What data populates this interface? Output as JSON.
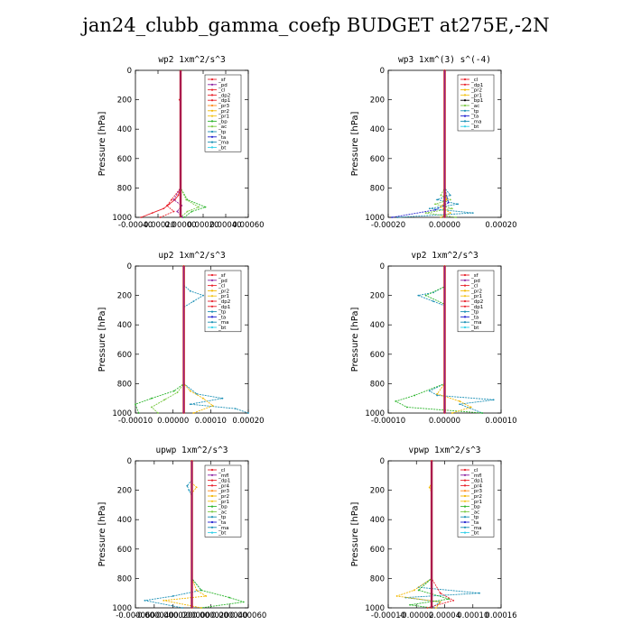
{
  "title": "jan24_clubb_gamma_coefp  BUDGET at275E,-2N",
  "colors": {
    "sf": "#e8202a",
    "pd": "#8a1fa0",
    "cl": "#e8202a",
    "dp2": "#e8202a",
    "dp1": "#e8202a",
    "pr3": "#ff8c1a",
    "pr2": "#f2b700",
    "pr1": "#f2c41a",
    "pr4": "#e8202a",
    "bp": "#2cb52c",
    "ac": "#7ac943",
    "tp": "#1a8fb5",
    "ta": "#1e1ed0",
    "ma": "#1a8fb5",
    "bt": "#30d0e8",
    "mfl": "#8a1fa0",
    "line": "#e8202a"
  },
  "chart_data": [
    {
      "type": "line",
      "title": "wp2   1xm^2/s^3",
      "ylabel": "Pressure [hPa]",
      "ylim": [
        1000,
        0
      ],
      "xlim": [
        -0.0004,
        0.0006
      ],
      "xticks": [
        "-0.00040",
        "-0.00020",
        "0.00000",
        "0.00020",
        "0.00040",
        "0.00060"
      ],
      "yticks": [
        "0",
        "200",
        "400",
        "600",
        "800",
        "1000"
      ],
      "legend": [
        "_sf",
        "_pd",
        "_cl",
        "_dp2",
        "_dp1",
        "_pr3",
        "_pr2",
        "_pr1",
        "_bp",
        "_ac",
        "_tp",
        "_ta",
        "_ma",
        "_bt"
      ],
      "legend_position": "top-right",
      "series": [
        {
          "key": "sf",
          "p": [
            0,
            200,
            800,
            850,
            880,
            910,
            940,
            970,
            1000
          ],
          "v": [
            0,
            0,
            0,
            -2e-05,
            -5e-05,
            -0.0001,
            -0.00015,
            -0.00025,
            -0.00035
          ]
        },
        {
          "key": "dp2",
          "p": [
            0,
            180,
            200,
            220,
            800,
            880,
            920,
            960,
            1000
          ],
          "v": [
            0,
            0,
            -1e-05,
            0,
            0,
            -8e-05,
            -0.00012,
            -6e-05,
            -0.00018
          ]
        },
        {
          "key": "pd",
          "p": [
            0,
            800,
            880,
            920,
            960,
            1000
          ],
          "v": [
            0,
            0,
            -6e-05,
            1e-05,
            -3e-05,
            2e-05
          ]
        },
        {
          "key": "bp",
          "p": [
            0,
            800,
            880,
            930,
            960,
            1000
          ],
          "v": [
            0,
            0,
            6e-05,
            0.00022,
            0.0001,
            3e-05
          ]
        },
        {
          "key": "ac",
          "p": [
            0,
            800,
            880,
            930,
            960,
            1000
          ],
          "v": [
            0,
            0,
            5e-05,
            0.00016,
            6e-05,
            0.0
          ]
        }
      ]
    },
    {
      "type": "line",
      "title": "wp3   1xm^(3) s^(-4)",
      "ylabel": "Pressure [hPa]",
      "ylim": [
        1000,
        0
      ],
      "xlim": [
        -0.0003,
        0.0003
      ],
      "xticks": [
        "-0.00020",
        "0.00000",
        "0.00020"
      ],
      "yticks": [
        "0",
        "200",
        "400",
        "600",
        "800",
        "1000"
      ],
      "legend": [
        "_cl",
        "_dp1",
        "_pr2",
        "_pr1",
        "_bp1",
        "_ac",
        "_tp",
        "_ta",
        "_ma",
        "_bt"
      ],
      "legend_position": "top-right",
      "series": [
        {
          "key": "tp",
          "p": [
            0,
            800,
            850,
            880,
            910,
            940,
            970,
            1000
          ],
          "v": [
            0,
            0,
            3e-05,
            -4e-05,
            7e-05,
            -8e-05,
            0.00015,
            -0.00025
          ]
        },
        {
          "key": "ac",
          "p": [
            0,
            800,
            850,
            880,
            910,
            940,
            970,
            1000
          ],
          "v": [
            0,
            0,
            -2e-05,
            3e-05,
            -5e-05,
            4e-05,
            -0.0001,
            6e-05
          ]
        },
        {
          "key": "ta",
          "p": [
            0,
            800,
            900,
            950,
            1000
          ],
          "v": [
            0,
            0,
            2e-05,
            -5e-05,
            -0.00028
          ]
        },
        {
          "key": "pr2",
          "p": [
            0,
            800,
            880,
            930,
            970,
            1000
          ],
          "v": [
            0,
            0,
            1e-05,
            -2e-05,
            3e-05,
            -2e-05
          ]
        },
        {
          "key": "line",
          "p": [
            0,
            1000
          ],
          "v": [
            0,
            0
          ]
        }
      ]
    },
    {
      "type": "line",
      "title": "up2   1xm^2/s^3",
      "ylabel": "Pressure [hPa]",
      "ylim": [
        1000,
        0
      ],
      "xlim": [
        -0.00015,
        0.0002
      ],
      "xticks": [
        "-0.00010",
        "0.00000",
        "0.00010",
        "0.00020"
      ],
      "yticks": [
        "0",
        "200",
        "400",
        "600",
        "800",
        "1000"
      ],
      "legend": [
        "_sf",
        "_pd",
        "_cl",
        "_pr2",
        "_pr1",
        "_dp2",
        "_dp1",
        "_tp",
        "_ta",
        "_ma",
        "_bt"
      ],
      "legend_position": "top-right",
      "series": [
        {
          "key": "tp",
          "p": [
            0,
            130,
            170,
            200,
            240,
            280,
            800,
            870,
            900,
            940,
            970,
            1000
          ],
          "v": [
            0,
            0,
            2e-05,
            6e-05,
            3e-05,
            0,
            0,
            4e-05,
            0.00012,
            2e-05,
            0.00016,
            0.0002
          ]
        },
        {
          "key": "bp",
          "p": [
            0,
            800,
            850,
            900,
            940,
            1000
          ],
          "v": [
            0,
            0,
            -3e-05,
            -0.0001,
            -0.00015,
            -0.00014
          ]
        },
        {
          "key": "ac",
          "p": [
            0,
            800,
            860,
            910,
            960,
            1000
          ],
          "v": [
            0,
            0,
            -2e-05,
            -6e-05,
            -0.0001,
            -8e-05
          ]
        },
        {
          "key": "pr2",
          "p": [
            0,
            800,
            850,
            900,
            950,
            1000
          ],
          "v": [
            0,
            0,
            2e-05,
            6e-05,
            9e-05,
            3e-05
          ]
        },
        {
          "key": "sf",
          "p": [
            0,
            1000
          ],
          "v": [
            0,
            0
          ]
        }
      ]
    },
    {
      "type": "line",
      "title": "vp2   1xm^2/s^3",
      "ylabel": "Pressure [hPa]",
      "ylim": [
        1000,
        0
      ],
      "xlim": [
        -0.00015,
        0.00015
      ],
      "xticks": [
        "-0.00010",
        "0.00000",
        "0.00010"
      ],
      "yticks": [
        "0",
        "200",
        "400",
        "600",
        "800",
        "1000"
      ],
      "legend": [
        "_sf",
        "_pd",
        "_cl",
        "_pr2",
        "_pr1",
        "_dp2",
        "_dp1",
        "_tp",
        "_ta",
        "_ma",
        "_bt"
      ],
      "legend_position": "top-right",
      "series": [
        {
          "key": "tp",
          "p": [
            0,
            140,
            180,
            200,
            240,
            270,
            800,
            850,
            880,
            910,
            940,
            1000
          ],
          "v": [
            0,
            0,
            -3e-05,
            -7e-05,
            -3e-05,
            0,
            0,
            -4e-05,
            -2e-05,
            0.00013,
            4e-05,
            0.0001
          ]
        },
        {
          "key": "bp",
          "p": [
            0,
            140,
            200,
            260,
            800,
            880,
            920,
            960,
            1000
          ],
          "v": [
            0,
            0,
            -5e-05,
            0,
            0,
            -8e-05,
            -0.00013,
            -0.0001,
            0.0001
          ]
        },
        {
          "key": "pr2",
          "p": [
            0,
            800,
            870,
            920,
            960,
            1000
          ],
          "v": [
            0,
            0,
            -2e-05,
            4e-05,
            7e-05,
            2e-05
          ]
        },
        {
          "key": "sf",
          "p": [
            0,
            1000
          ],
          "v": [
            0,
            0
          ]
        }
      ]
    },
    {
      "type": "line",
      "title": "upwp   1xm^2/s^3",
      "ylabel": "Pressure [hPa]",
      "ylim": [
        1000,
        0
      ],
      "xlim": [
        -6e-05,
        6e-05
      ],
      "xticks": [
        "-0.000060",
        "-0.000040",
        "-0.000020",
        "0.000000",
        "0.000020",
        "0.000040",
        "0.000060"
      ],
      "yticks": [
        "0",
        "200",
        "400",
        "600",
        "800",
        "1000"
      ],
      "legend": [
        "_cl",
        "_mfl",
        "_dp1",
        "_pr4",
        "_pr3",
        "_pr2",
        "_pr1",
        "_bp",
        "_ac",
        "_tp",
        "_ta",
        "_ma",
        "_bt"
      ],
      "legend_position": "top-right",
      "series": [
        {
          "key": "tp",
          "p": [
            0,
            130,
            170,
            200,
            240,
            800,
            880,
            920,
            950,
            1000
          ],
          "v": [
            0,
            0,
            -5e-06,
            -3e-06,
            0,
            0,
            1e-05,
            -2e-05,
            -5e-05,
            -1e-05
          ]
        },
        {
          "key": "bp",
          "p": [
            0,
            800,
            880,
            930,
            960,
            1000
          ],
          "v": [
            0,
            0,
            1e-05,
            4e-05,
            5.5e-05,
            1e-05
          ]
        },
        {
          "key": "pr2",
          "p": [
            0,
            150,
            180,
            220,
            800,
            880,
            920,
            950,
            1000
          ],
          "v": [
            0,
            0,
            5e-06,
            0,
            0,
            5e-06,
            1.5e-05,
            -3e-05,
            1e-05
          ]
        },
        {
          "key": "sf",
          "p": [
            0,
            1000
          ],
          "v": [
            0,
            0
          ]
        }
      ]
    },
    {
      "type": "line",
      "title": "vpwp   1xm^2/s^3",
      "ylabel": "Pressure [hPa]",
      "ylim": [
        1000,
        0
      ],
      "xlim": [
        -0.0001,
        0.00016
      ],
      "xticks": [
        "-0.00010",
        "-0.00002",
        "0.00004",
        "0.00010",
        "0.00016"
      ],
      "yticks": [
        "0",
        "200",
        "400",
        "600",
        "800",
        "1000"
      ],
      "legend": [
        "_cl",
        "_mfl",
        "_dp1",
        "_pr4",
        "_pr3",
        "_pr2",
        "_pr1",
        "_bp",
        "_ac",
        "_tp",
        "_ta",
        "_ma",
        "_bt"
      ],
      "legend_position": "top-right",
      "series": [
        {
          "key": "tp",
          "p": [
            0,
            800,
            860,
            900,
            930,
            960,
            1000
          ],
          "v": [
            0,
            0,
            -3e-05,
            0.00011,
            -6e-05,
            2e-05,
            0
          ]
        },
        {
          "key": "pr2",
          "p": [
            0,
            150,
            180,
            220,
            800,
            880,
            920,
            960,
            1000
          ],
          "v": [
            0,
            0,
            -5e-06,
            0,
            0,
            -4e-05,
            -8e-05,
            2e-05,
            1e-05
          ]
        },
        {
          "key": "bp",
          "p": [
            0,
            800,
            880,
            940,
            980,
            1000
          ],
          "v": [
            0,
            0,
            -3e-05,
            4e-05,
            -5e-05,
            0
          ]
        },
        {
          "key": "dp1",
          "p": [
            0,
            800,
            900,
            950,
            1000
          ],
          "v": [
            0,
            0,
            2e-05,
            5e-05,
            -1e-05
          ]
        },
        {
          "key": "sf",
          "p": [
            0,
            1000
          ],
          "v": [
            0,
            0
          ]
        }
      ]
    }
  ]
}
